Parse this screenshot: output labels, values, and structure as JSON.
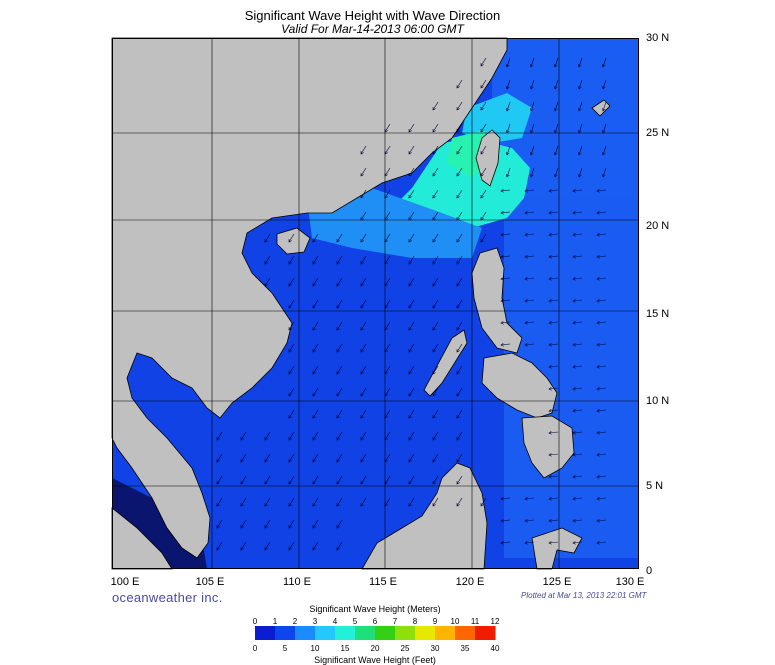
{
  "title": "Significant Wave Height with Wave Direction",
  "subtitle": "Valid For Mar-14-2013 06:00 GMT",
  "brand": "oceanweather inc.",
  "plotted": "Plotted at Mar 13, 2013 22:01 GMT",
  "latitude_labels": [
    "30 N",
    "25 N",
    "20 N",
    "15 N",
    "10 N",
    "5 N",
    "0"
  ],
  "longitude_labels": [
    "100 E",
    "105 E",
    "110 E",
    "115 E",
    "120 E",
    "125 E",
    "130 E"
  ],
  "extent": {
    "lon": [
      99,
      128
    ],
    "lat": [
      0,
      30
    ]
  },
  "colorbar": {
    "title": "Significant Wave Height (Meters)",
    "footer": "Significant Wave Height (Feet)",
    "meter_ticks": [
      "0",
      "1",
      "2",
      "3",
      "4",
      "5",
      "6",
      "7",
      "8",
      "9",
      "10",
      "11",
      "12"
    ],
    "feet_ticks": [
      "0",
      "5",
      "10",
      "15",
      "20",
      "25",
      "30",
      "35",
      "40"
    ],
    "colors": [
      "#0a1dd0",
      "#0f45ee",
      "#1a8cff",
      "#22c8ff",
      "#22f0d8",
      "#1ee07a",
      "#34d014",
      "#8ee00a",
      "#e6e800",
      "#ffb400",
      "#ff6600",
      "#f01e00"
    ]
  },
  "colors": {
    "land": "#c0c0c0",
    "deep_sea": "#0d27d6",
    "sea": "#1142e6",
    "lighter_sea": "#2273f5",
    "taiwan_strait": "#22ecd8",
    "dark_sea": "#0a1570",
    "arrow": "#000033"
  }
}
